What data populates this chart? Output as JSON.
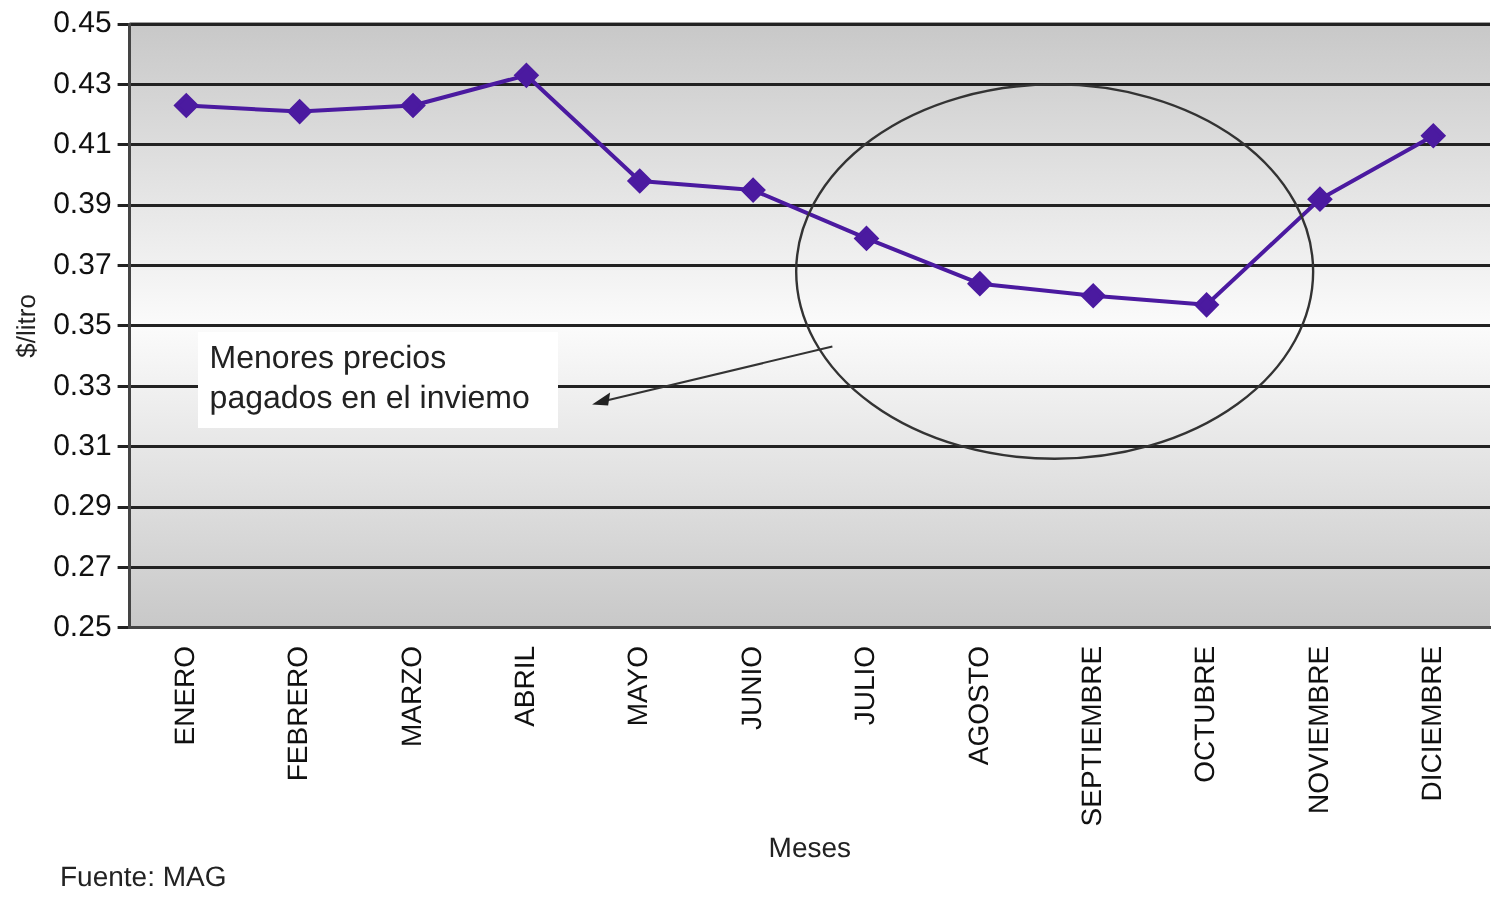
{
  "chart_data": {
    "type": "line",
    "ylabel": "$/litro",
    "xlabel": "Meses",
    "categories": [
      "ENERO",
      "FEBRERO",
      "MARZO",
      "ABRIL",
      "MAYO",
      "JUNIO",
      "JULIO",
      "AGOSTO",
      "SEPTIEMBRE",
      "OCTUBRE",
      "NOVIEMBRE",
      "DICIEMBRE"
    ],
    "series": [
      {
        "color": "#4b1aa0",
        "values": [
          0.423,
          0.421,
          0.423,
          0.433,
          0.398,
          0.395,
          0.379,
          0.364,
          0.36,
          0.357,
          0.392,
          0.413
        ]
      }
    ],
    "ylim": [
      0.25,
      0.45
    ],
    "yticks": [
      0.25,
      0.27,
      0.29,
      0.31,
      0.33,
      0.35,
      0.37,
      0.39,
      0.41,
      0.43,
      0.45
    ],
    "grid": "y",
    "legend": false,
    "marker": "diamond",
    "line_style": "solid",
    "annotations": [
      "Menores precios pagados en el inviemo",
      "Fuente: MAG"
    ]
  }
}
